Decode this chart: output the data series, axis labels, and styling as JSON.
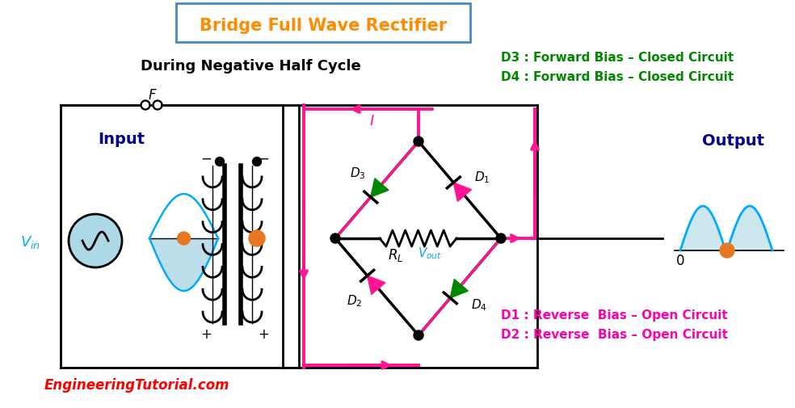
{
  "title": "Bridge Full Wave Rectifier",
  "title_color": "#FF8C00",
  "title_box_edgecolor": "#4488CC",
  "subtitle": "During Negative Half Cycle",
  "input_label": "Input",
  "output_label": "Output",
  "info_forward": [
    "D3 : Forward Bias – Closed Circuit",
    "D4 : Forward Bias – Closed Circuit"
  ],
  "info_reverse": [
    "D1 : Reverse  Bias – Open Circuit",
    "D2 : Reverse  Bias – Open Circuit"
  ],
  "info_forward_color": "#008800",
  "info_reverse_color": "#FF00AA",
  "website": "EngineeringTutorial.com",
  "website_color": "#FF0000",
  "background_color": "#FFFFFF",
  "cc": "#000000",
  "pink": "#FF1493",
  "green": "#008800",
  "blue": "#00AAFF",
  "orange": "#E87722",
  "dark_blue": "#00008B",
  "cyan_text": "#00AAFF",
  "lc_blue": "#ADD8E6"
}
